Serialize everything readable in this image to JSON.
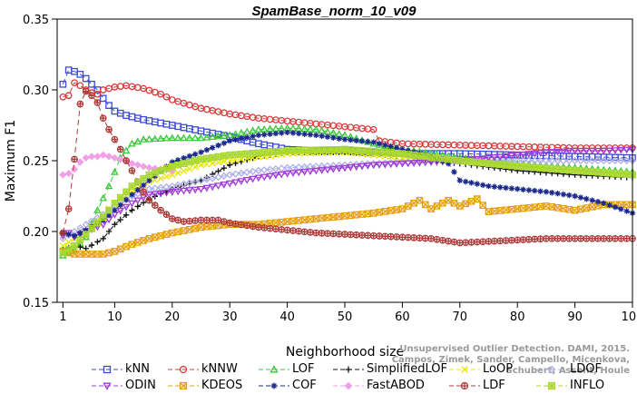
{
  "chart_data": {
    "type": "line",
    "title": "SpamBase_norm_10_v09",
    "xlabel": "Neighborhood size",
    "ylabel": "Maximum F1",
    "xlim": [
      0,
      100
    ],
    "ylim": [
      0.15,
      0.35
    ],
    "xticks": [
      1,
      10,
      20,
      30,
      40,
      50,
      60,
      70,
      80,
      90,
      100
    ],
    "yticks": [
      0.15,
      0.2,
      0.25,
      0.3,
      0.35
    ],
    "x_tick_labels": [
      "1",
      "10",
      "20",
      "30",
      "40",
      "50",
      "60",
      "70",
      "80",
      "90",
      "100"
    ],
    "y_tick_labels": [
      "0.15",
      "0.20",
      "0.25",
      "0.30",
      "0.35"
    ],
    "legend_position": "bottom",
    "series": [
      {
        "name": "kNN",
        "color": "#3a4ad8",
        "marker": "square",
        "dash": "6,4",
        "points": [
          [
            1,
            0.304
          ],
          [
            2,
            0.314
          ],
          [
            3,
            0.313
          ],
          [
            4,
            0.311
          ],
          [
            5,
            0.308
          ],
          [
            6,
            0.304
          ],
          [
            7,
            0.3
          ],
          [
            8,
            0.294
          ],
          [
            9,
            0.289
          ],
          [
            10,
            0.285
          ],
          [
            12,
            0.282
          ],
          [
            15,
            0.279
          ],
          [
            20,
            0.275
          ],
          [
            25,
            0.271
          ],
          [
            30,
            0.267
          ],
          [
            35,
            0.262
          ],
          [
            40,
            0.258
          ],
          [
            45,
            0.257
          ],
          [
            50,
            0.257
          ],
          [
            55,
            0.256
          ],
          [
            60,
            0.255
          ],
          [
            70,
            0.255
          ],
          [
            80,
            0.254
          ],
          [
            90,
            0.253
          ],
          [
            100,
            0.252
          ]
        ]
      },
      {
        "name": "kNNW",
        "color": "#d83a3a",
        "marker": "circle",
        "dash": "6,4",
        "points": [
          [
            1,
            0.295
          ],
          [
            2,
            0.296
          ],
          [
            3,
            0.305
          ],
          [
            4,
            0.303
          ],
          [
            5,
            0.3
          ],
          [
            6,
            0.298
          ],
          [
            7,
            0.297
          ],
          [
            8,
            0.3
          ],
          [
            10,
            0.302
          ],
          [
            12,
            0.303
          ],
          [
            15,
            0.301
          ],
          [
            18,
            0.297
          ],
          [
            20,
            0.293
          ],
          [
            25,
            0.287
          ],
          [
            30,
            0.283
          ],
          [
            35,
            0.28
          ],
          [
            40,
            0.278
          ],
          [
            45,
            0.276
          ],
          [
            50,
            0.274
          ],
          [
            55,
            0.272
          ],
          [
            56,
            0.264
          ],
          [
            60,
            0.262
          ],
          [
            70,
            0.261
          ],
          [
            80,
            0.26
          ],
          [
            90,
            0.259
          ],
          [
            100,
            0.259
          ]
        ]
      },
      {
        "name": "LOF",
        "color": "#3ac83a",
        "marker": "triangle-up",
        "dash": "6,4",
        "points": [
          [
            1,
            0.183
          ],
          [
            3,
            0.187
          ],
          [
            5,
            0.196
          ],
          [
            7,
            0.215
          ],
          [
            9,
            0.232
          ],
          [
            11,
            0.252
          ],
          [
            13,
            0.262
          ],
          [
            15,
            0.265
          ],
          [
            20,
            0.266
          ],
          [
            25,
            0.266
          ],
          [
            30,
            0.268
          ],
          [
            35,
            0.272
          ],
          [
            40,
            0.273
          ],
          [
            45,
            0.272
          ],
          [
            50,
            0.268
          ],
          [
            55,
            0.262
          ],
          [
            60,
            0.258
          ],
          [
            65,
            0.255
          ],
          [
            70,
            0.252
          ],
          [
            80,
            0.248
          ],
          [
            90,
            0.245
          ],
          [
            100,
            0.242
          ]
        ]
      },
      {
        "name": "SimplifiedLOF",
        "color": "#111111",
        "marker": "plus",
        "dash": "6,4",
        "points": [
          [
            1,
            0.187
          ],
          [
            3,
            0.19
          ],
          [
            5,
            0.188
          ],
          [
            8,
            0.195
          ],
          [
            10,
            0.205
          ],
          [
            13,
            0.215
          ],
          [
            16,
            0.223
          ],
          [
            20,
            0.23
          ],
          [
            25,
            0.236
          ],
          [
            30,
            0.247
          ],
          [
            35,
            0.253
          ],
          [
            40,
            0.256
          ],
          [
            45,
            0.256
          ],
          [
            50,
            0.256
          ],
          [
            55,
            0.255
          ],
          [
            60,
            0.253
          ],
          [
            65,
            0.25
          ],
          [
            70,
            0.248
          ],
          [
            80,
            0.243
          ],
          [
            90,
            0.24
          ],
          [
            100,
            0.238
          ]
        ]
      },
      {
        "name": "LoOP",
        "color": "#e8e800",
        "marker": "x",
        "dash": "6,4",
        "points": [
          [
            1,
            0.19
          ],
          [
            3,
            0.195
          ],
          [
            5,
            0.2
          ],
          [
            8,
            0.212
          ],
          [
            10,
            0.22
          ],
          [
            13,
            0.228
          ],
          [
            16,
            0.235
          ],
          [
            20,
            0.24
          ],
          [
            25,
            0.247
          ],
          [
            30,
            0.25
          ],
          [
            40,
            0.255
          ],
          [
            50,
            0.256
          ],
          [
            60,
            0.252
          ],
          [
            70,
            0.25
          ],
          [
            80,
            0.246
          ],
          [
            90,
            0.243
          ],
          [
            100,
            0.24
          ]
        ]
      },
      {
        "name": "LDOF",
        "color": "#b0b0e8",
        "marker": "diamond",
        "dash": "6,4",
        "points": [
          [
            1,
            0.195
          ],
          [
            3,
            0.2
          ],
          [
            5,
            0.205
          ],
          [
            8,
            0.212
          ],
          [
            10,
            0.218
          ],
          [
            13,
            0.225
          ],
          [
            16,
            0.23
          ],
          [
            20,
            0.232
          ],
          [
            25,
            0.236
          ],
          [
            30,
            0.24
          ],
          [
            35,
            0.243
          ],
          [
            40,
            0.245
          ],
          [
            45,
            0.246
          ],
          [
            50,
            0.247
          ],
          [
            55,
            0.248
          ],
          [
            60,
            0.249
          ],
          [
            70,
            0.25
          ],
          [
            80,
            0.25
          ],
          [
            90,
            0.25
          ],
          [
            100,
            0.25
          ]
        ]
      },
      {
        "name": "ODIN",
        "color": "#a03ad8",
        "marker": "triangle-down",
        "dash": "6,4",
        "points": [
          [
            1,
            0.197
          ],
          [
            2,
            0.199
          ],
          [
            3,
            0.196
          ],
          [
            5,
            0.2
          ],
          [
            8,
            0.205
          ],
          [
            10,
            0.212
          ],
          [
            13,
            0.22
          ],
          [
            16,
            0.226
          ],
          [
            20,
            0.228
          ],
          [
            25,
            0.23
          ],
          [
            30,
            0.234
          ],
          [
            35,
            0.238
          ],
          [
            40,
            0.241
          ],
          [
            45,
            0.243
          ],
          [
            50,
            0.245
          ],
          [
            55,
            0.247
          ],
          [
            60,
            0.248
          ],
          [
            65,
            0.249
          ],
          [
            70,
            0.25
          ],
          [
            75,
            0.252
          ],
          [
            80,
            0.254
          ],
          [
            85,
            0.256
          ],
          [
            90,
            0.257
          ],
          [
            95,
            0.257
          ],
          [
            100,
            0.258
          ]
        ]
      },
      {
        "name": "KDEOS",
        "color": "#e8a010",
        "marker": "square-x",
        "dash": "6,4",
        "points": [
          [
            1,
            0.186
          ],
          [
            3,
            0.184
          ],
          [
            5,
            0.184
          ],
          [
            8,
            0.184
          ],
          [
            10,
            0.186
          ],
          [
            13,
            0.191
          ],
          [
            16,
            0.195
          ],
          [
            20,
            0.199
          ],
          [
            25,
            0.203
          ],
          [
            30,
            0.205
          ],
          [
            35,
            0.205
          ],
          [
            40,
            0.207
          ],
          [
            45,
            0.209
          ],
          [
            50,
            0.211
          ],
          [
            55,
            0.213
          ],
          [
            60,
            0.216
          ],
          [
            63,
            0.222
          ],
          [
            65,
            0.216
          ],
          [
            68,
            0.222
          ],
          [
            70,
            0.218
          ],
          [
            73,
            0.223
          ],
          [
            75,
            0.214
          ],
          [
            80,
            0.216
          ],
          [
            85,
            0.218
          ],
          [
            90,
            0.215
          ],
          [
            95,
            0.219
          ],
          [
            100,
            0.219
          ]
        ]
      },
      {
        "name": "COF",
        "color": "#1a2a8a",
        "marker": "asterisk",
        "dash": "6,4",
        "points": [
          [
            1,
            0.199
          ],
          [
            3,
            0.197
          ],
          [
            5,
            0.201
          ],
          [
            8,
            0.208
          ],
          [
            10,
            0.215
          ],
          [
            13,
            0.226
          ],
          [
            16,
            0.236
          ],
          [
            20,
            0.249
          ],
          [
            25,
            0.256
          ],
          [
            30,
            0.264
          ],
          [
            35,
            0.268
          ],
          [
            40,
            0.27
          ],
          [
            45,
            0.268
          ],
          [
            50,
            0.265
          ],
          [
            55,
            0.263
          ],
          [
            60,
            0.258
          ],
          [
            65,
            0.253
          ],
          [
            68,
            0.248
          ],
          [
            70,
            0.236
          ],
          [
            75,
            0.232
          ],
          [
            80,
            0.23
          ],
          [
            85,
            0.228
          ],
          [
            90,
            0.225
          ],
          [
            95,
            0.22
          ],
          [
            100,
            0.213
          ]
        ]
      },
      {
        "name": "FastABOD",
        "color": "#f0a0e8",
        "marker": "diamond-filled",
        "dash": "6,4",
        "points": [
          [
            1,
            0.24
          ],
          [
            2,
            0.241
          ],
          [
            3,
            0.244
          ],
          [
            4,
            0.249
          ],
          [
            5,
            0.252
          ],
          [
            6,
            0.253
          ],
          [
            7,
            0.253
          ],
          [
            8,
            0.254
          ],
          [
            9,
            0.253
          ],
          [
            10,
            0.252
          ],
          [
            11,
            0.251
          ],
          [
            12,
            0.25
          ],
          [
            13,
            0.248
          ],
          [
            14,
            0.247
          ],
          [
            15,
            0.246
          ],
          [
            16,
            0.245
          ],
          [
            18,
            0.244
          ],
          [
            20,
            0.243
          ]
        ]
      },
      {
        "name": "LDF",
        "color": "#b03a3a",
        "marker": "circle-plus",
        "dash": "6,4",
        "points": [
          [
            1,
            0.199
          ],
          [
            2,
            0.216
          ],
          [
            3,
            0.251
          ],
          [
            4,
            0.29
          ],
          [
            5,
            0.299
          ],
          [
            6,
            0.296
          ],
          [
            7,
            0.291
          ],
          [
            8,
            0.28
          ],
          [
            9,
            0.272
          ],
          [
            10,
            0.265
          ],
          [
            11,
            0.258
          ],
          [
            12,
            0.25
          ],
          [
            13,
            0.243
          ],
          [
            14,
            0.235
          ],
          [
            15,
            0.228
          ],
          [
            16,
            0.222
          ],
          [
            18,
            0.215
          ],
          [
            20,
            0.209
          ],
          [
            22,
            0.207
          ],
          [
            25,
            0.208
          ],
          [
            28,
            0.208
          ],
          [
            30,
            0.206
          ],
          [
            35,
            0.203
          ],
          [
            40,
            0.201
          ],
          [
            45,
            0.199
          ],
          [
            50,
            0.198
          ],
          [
            55,
            0.197
          ],
          [
            60,
            0.196
          ],
          [
            65,
            0.195
          ],
          [
            70,
            0.192
          ],
          [
            75,
            0.193
          ],
          [
            80,
            0.194
          ],
          [
            85,
            0.195
          ],
          [
            90,
            0.195
          ],
          [
            95,
            0.195
          ],
          [
            100,
            0.195
          ]
        ]
      },
      {
        "name": "INFLO",
        "color": "#a8d830",
        "marker": "square-star",
        "dash": "6,4",
        "points": [
          [
            1,
            0.185
          ],
          [
            3,
            0.19
          ],
          [
            5,
            0.198
          ],
          [
            8,
            0.21
          ],
          [
            10,
            0.22
          ],
          [
            13,
            0.232
          ],
          [
            16,
            0.24
          ],
          [
            20,
            0.246
          ],
          [
            25,
            0.251
          ],
          [
            30,
            0.254
          ],
          [
            40,
            0.257
          ],
          [
            50,
            0.258
          ],
          [
            60,
            0.255
          ],
          [
            70,
            0.25
          ],
          [
            80,
            0.246
          ],
          [
            90,
            0.243
          ],
          [
            100,
            0.24
          ]
        ]
      }
    ]
  },
  "watermark": {
    "line1": "Unsupervised Outlier Detection. DAMI, 2015.",
    "line2": "Campos, Zimek, Sander, Campello, Micenkova, Schubert, Assent, Houle"
  }
}
